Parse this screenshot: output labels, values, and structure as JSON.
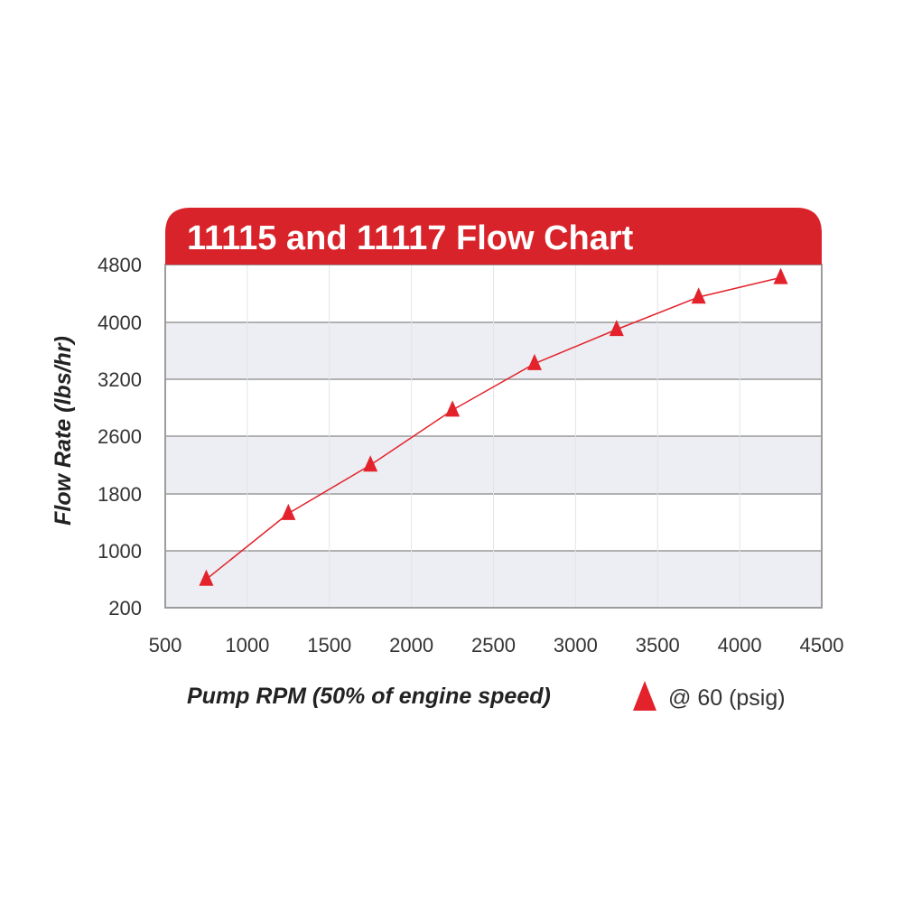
{
  "chart_data": {
    "type": "line",
    "title": "11115 and 11117 Flow Chart",
    "xlabel": "Pump RPM (50% of engine speed)",
    "ylabel": "Flow Rate (lbs/hr)",
    "xlim": [
      500,
      4500
    ],
    "x_ticks": [
      500,
      1000,
      1500,
      2000,
      2500,
      3000,
      3500,
      4000,
      4500
    ],
    "y_ticks": [
      200,
      1000,
      1800,
      2600,
      3200,
      4000,
      4800
    ],
    "grid": true,
    "legend_position": "bottom-right",
    "colors": {
      "header": "#d8232a",
      "series": "#e3222b",
      "band": "#eceef3",
      "grid": "#9a9a9a",
      "frame": "#9c9c9c"
    },
    "series": [
      {
        "name": "@ 60 (psig)",
        "marker": "triangle",
        "points": [
          {
            "x": 750,
            "y": 600
          },
          {
            "x": 1250,
            "y": 1525
          },
          {
            "x": 1750,
            "y": 2200
          },
          {
            "x": 2250,
            "y": 2875
          },
          {
            "x": 2750,
            "y": 3420
          },
          {
            "x": 3250,
            "y": 3900
          },
          {
            "x": 3750,
            "y": 4350
          },
          {
            "x": 4250,
            "y": 4620
          }
        ]
      }
    ]
  }
}
